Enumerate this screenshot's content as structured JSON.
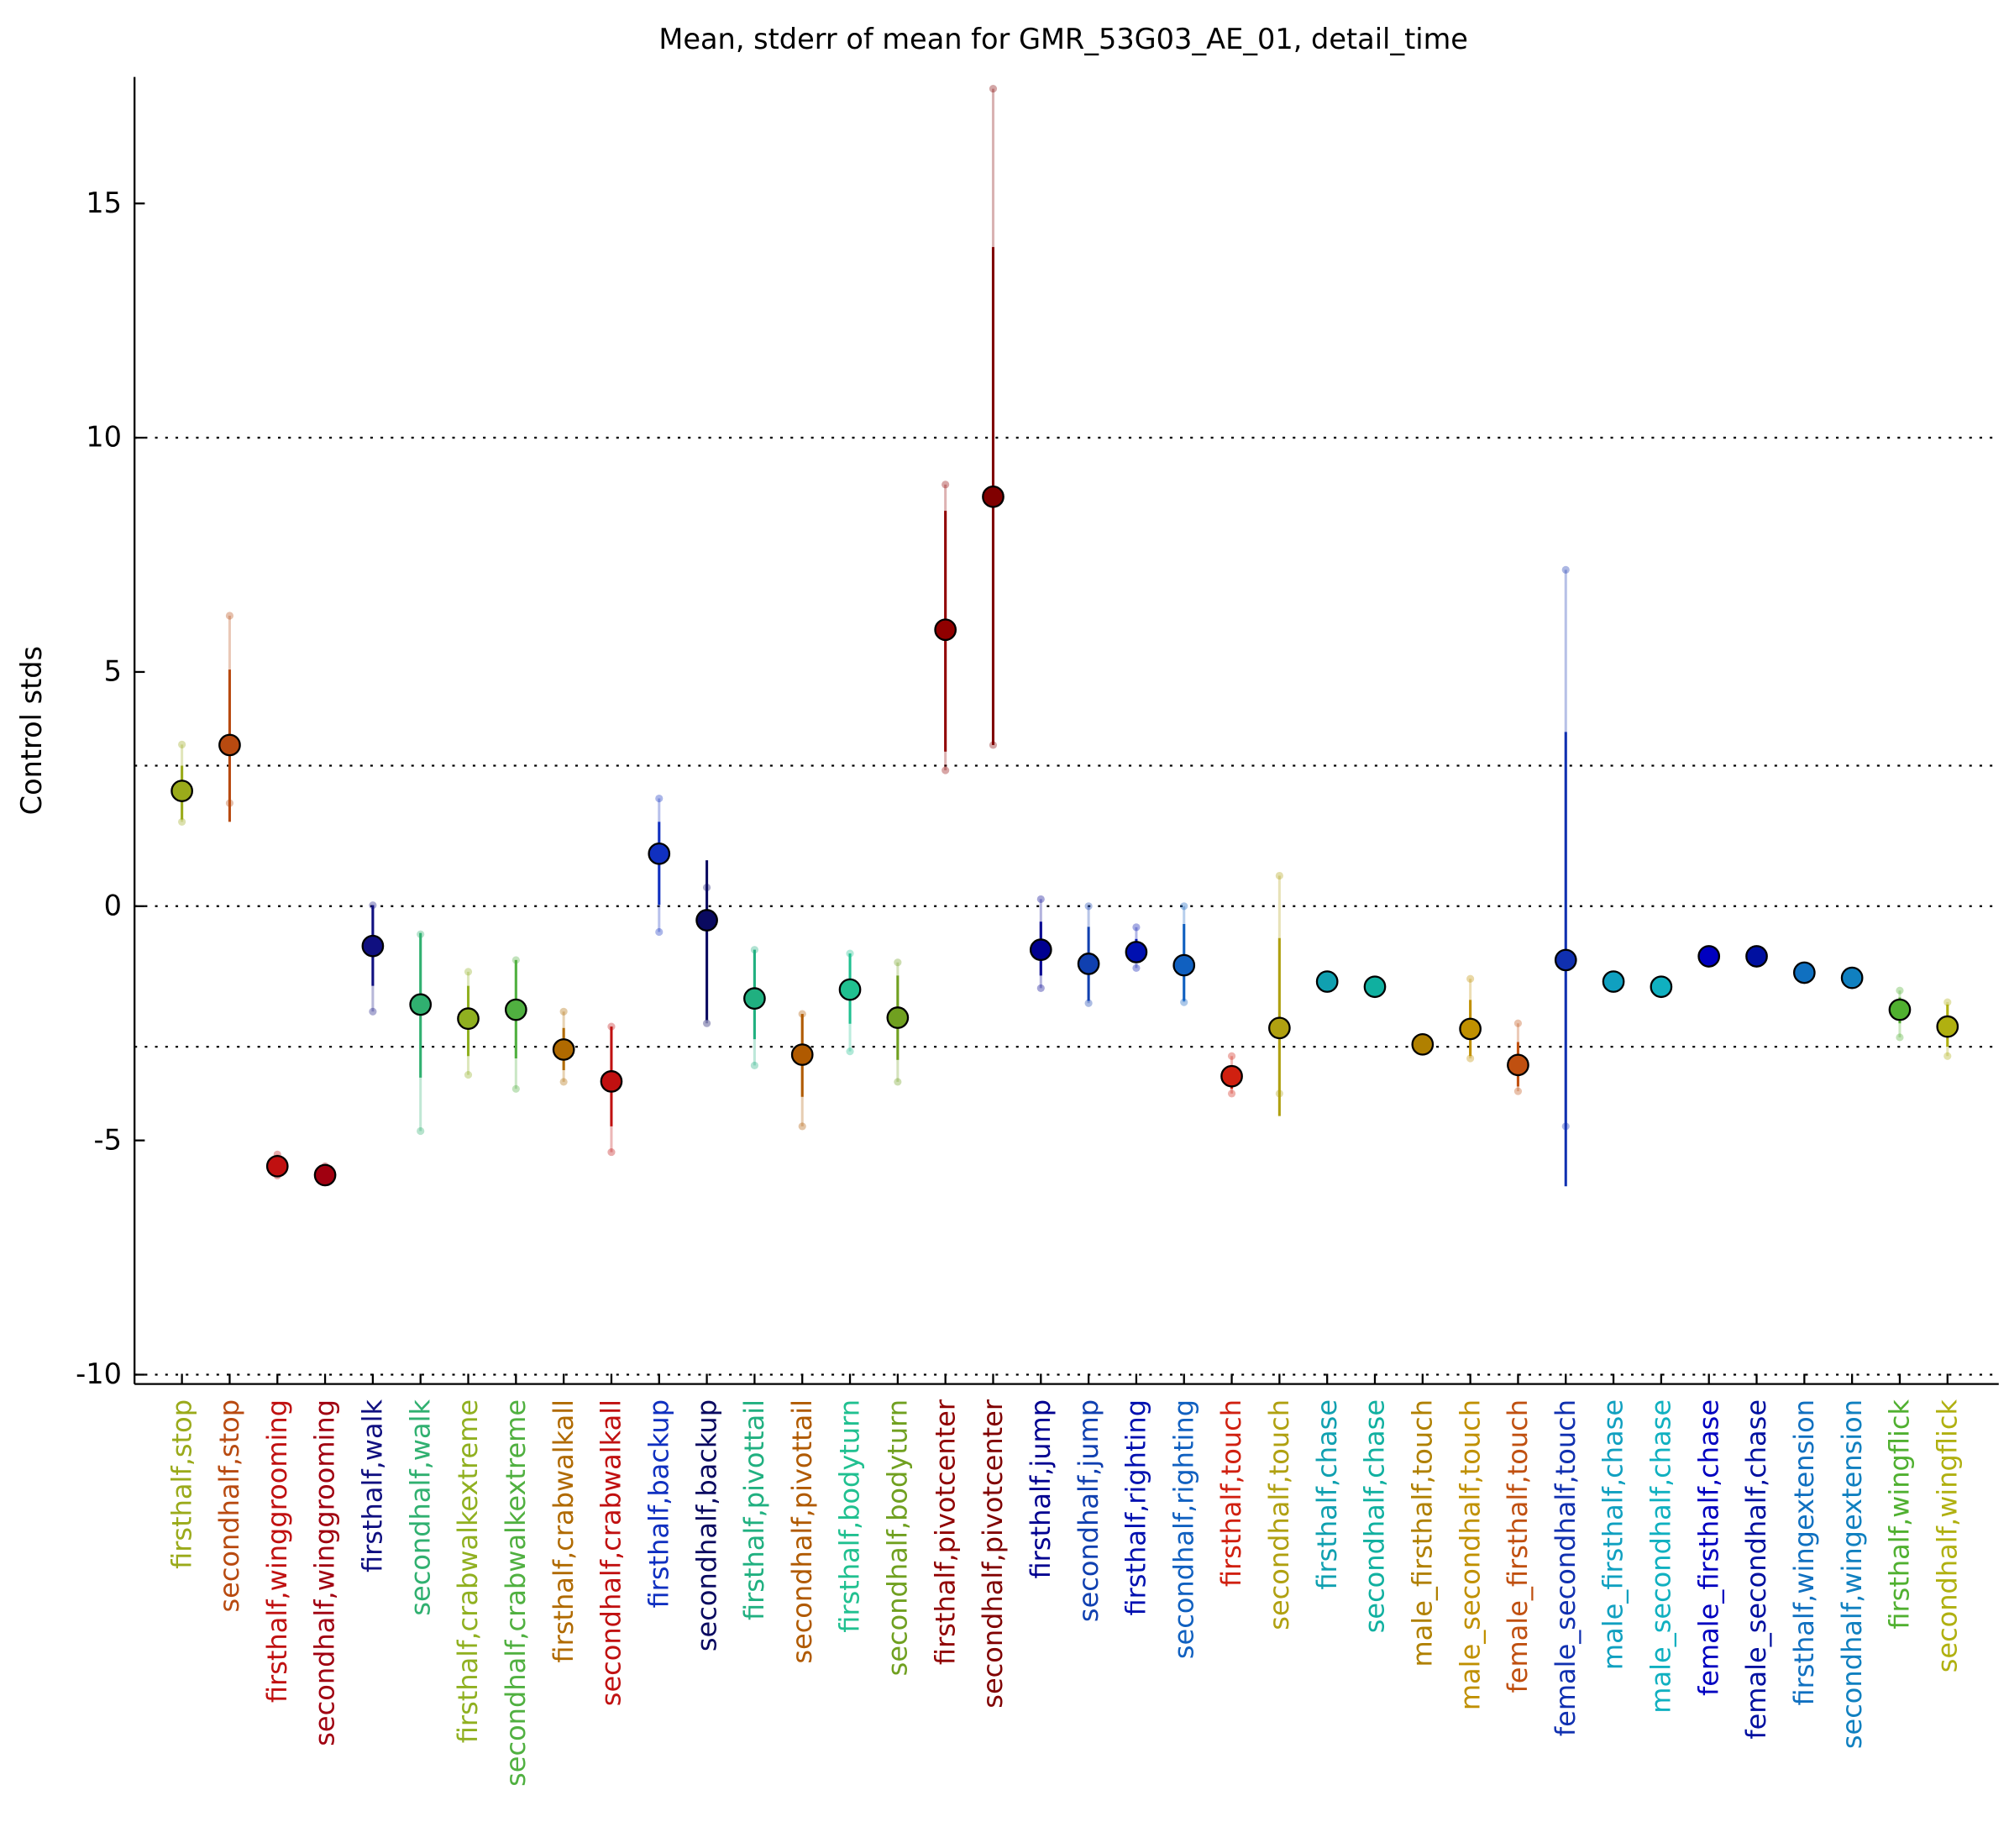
{
  "chart_data": {
    "type": "errorbar",
    "title": "Mean, stderr of mean for GMR_53G03_AE_01, detail_time",
    "y_label": "Control stds",
    "ylim": [
      -10.2,
      17.7
    ],
    "yticks": [
      -10,
      -5,
      0,
      5,
      10,
      15
    ],
    "hlines": [
      -10,
      -3,
      0,
      3,
      10
    ],
    "categories": [
      "firsthalf,stop",
      "secondhalf,stop",
      "firsthalf,winggrooming",
      "secondhalf,winggrooming",
      "firsthalf,walk",
      "secondhalf,walk",
      "firsthalf,crabwalkextreme",
      "secondhalf,crabwalkextreme",
      "firsthalf,crabwalkall",
      "secondhalf,crabwalkall",
      "firsthalf,backup",
      "secondhalf,backup",
      "firsthalf,pivottail",
      "secondhalf,pivottail",
      "firsthalf,bodyturn",
      "secondhalf,bodyturn",
      "firsthalf,pivotcenter",
      "secondhalf,pivotcenter",
      "firsthalf,jump",
      "secondhalf,jump",
      "firsthalf,righting",
      "secondhalf,righting",
      "firsthalf,touch",
      "secondhalf,touch",
      "firsthalf,chase",
      "secondhalf,chase",
      "male_firsthalf,touch",
      "male_secondhalf,touch",
      "female_firsthalf,touch",
      "female_secondhalf,touch",
      "male_firsthalf,chase",
      "male_secondhalf,chase",
      "female_firsthalf,chase",
      "female_secondhalf,chase",
      "firsthalf,wingextension",
      "secondhalf,wingextension",
      "firsthalf,wingflick",
      "secondhalf,wingflick"
    ],
    "values": [
      2.46,
      3.44,
      -5.55,
      -5.74,
      -0.85,
      -2.1,
      -2.4,
      -2.21,
      -3.06,
      -3.74,
      1.12,
      -0.3,
      -1.97,
      -3.17,
      -1.78,
      -2.38,
      5.9,
      8.74,
      -0.93,
      -1.23,
      -0.98,
      -1.26,
      -3.63,
      -2.6,
      -1.61,
      -1.72,
      -2.95,
      -2.62,
      -3.39,
      -1.15,
      -1.61,
      -1.72,
      -1.07,
      -1.07,
      -1.42,
      -1.53,
      -2.21,
      -2.57
    ],
    "stderr_low": [
      1.85,
      1.8,
      -5.7,
      -5.85,
      -1.7,
      -3.66,
      -3.2,
      -3.25,
      -3.5,
      -4.7,
      0.03,
      -2.43,
      -2.84,
      -4.07,
      -2.51,
      -3.28,
      3.3,
      3.44,
      -1.48,
      -2.02,
      -1.2,
      -2.02,
      -3.9,
      -4.48,
      -1.7,
      -1.8,
      -3.05,
      -3.2,
      -3.85,
      -5.98,
      -1.7,
      -1.8,
      -1.15,
      -1.15,
      -1.5,
      -1.6,
      -2.5,
      -3.0
    ],
    "stderr_high": [
      3.0,
      5.05,
      -5.4,
      -5.6,
      0.02,
      -0.57,
      -1.7,
      -1.15,
      -2.6,
      -2.57,
      1.8,
      0.98,
      -0.93,
      -2.3,
      -1.01,
      -1.48,
      8.44,
      14.07,
      -0.33,
      -0.44,
      -0.7,
      -0.38,
      -3.4,
      -0.68,
      -1.52,
      -1.64,
      -2.85,
      -2.0,
      -2.9,
      3.72,
      -1.52,
      -1.64,
      -0.99,
      -0.99,
      -1.34,
      -1.45,
      -1.95,
      -2.1
    ],
    "range_low": [
      1.8,
      2.2,
      -5.75,
      -5.9,
      -2.25,
      -4.8,
      -3.6,
      -3.9,
      -3.75,
      -5.25,
      -0.55,
      -2.5,
      -3.4,
      -4.7,
      -3.1,
      -3.75,
      2.9,
      3.44,
      -1.75,
      -2.07,
      -1.32,
      -2.05,
      -4.0,
      -4.0,
      -1.7,
      -1.8,
      -3.05,
      -3.25,
      -3.95,
      -4.7,
      -1.7,
      -1.8,
      -1.15,
      -1.15,
      -1.5,
      -1.6,
      -2.8,
      -3.2
    ],
    "range_high": [
      3.45,
      6.2,
      -5.3,
      -5.55,
      0.02,
      -0.6,
      -1.4,
      -1.15,
      -2.25,
      -2.57,
      2.3,
      0.4,
      -0.93,
      -2.3,
      -1.01,
      -1.2,
      9.0,
      17.45,
      0.15,
      0.0,
      -0.45,
      0.0,
      -3.2,
      0.65,
      -1.52,
      -1.64,
      -2.85,
      -1.55,
      -2.5,
      7.18,
      -1.52,
      -1.64,
      -0.99,
      -0.99,
      -1.34,
      -1.45,
      -1.8,
      -2.05
    ],
    "colors": [
      "#9aaa1a",
      "#b84a10",
      "#c01010",
      "#a00010",
      "#101080",
      "#30b070",
      "#90b020",
      "#50b040",
      "#b06a00",
      "#c01010",
      "#1030c0",
      "#0a0a60",
      "#20b080",
      "#b05a00",
      "#20c090",
      "#70a020",
      "#900000",
      "#800000",
      "#000090",
      "#1040b0",
      "#0010b0",
      "#1060c0",
      "#d02010",
      "#b0a010",
      "#10a0b0",
      "#10b0a0",
      "#b08000",
      "#c09000",
      "#c05010",
      "#1030b0",
      "#10a0c0",
      "#10b0c0",
      "#0000c0",
      "#0010a0",
      "#1070c0",
      "#1080c0",
      "#50b030",
      "#b0b010"
    ]
  }
}
